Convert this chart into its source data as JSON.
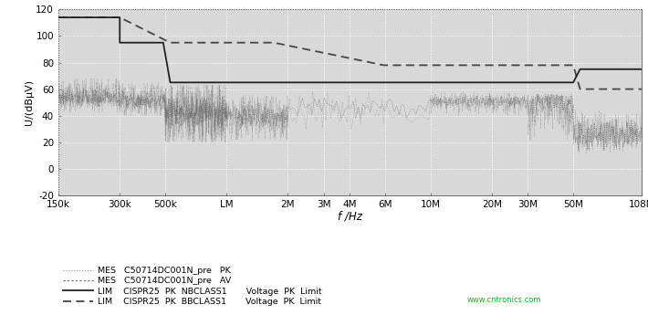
{
  "ylabel": "U/(dBμV)",
  "xlabel": "f /Hz",
  "ylim": [
    -20,
    120
  ],
  "yticks": [
    -20,
    0,
    20,
    40,
    60,
    80,
    100,
    120
  ],
  "freq_hz": [
    150000,
    300000,
    500000,
    1000000,
    2000000,
    3000000,
    4000000,
    6000000,
    10000000,
    20000000,
    30000000,
    50000000,
    108000000
  ],
  "freq_tick_labels": [
    "150k",
    "300k",
    "500k",
    "LM",
    "2M",
    "3M",
    "4M",
    "6M",
    "10M",
    "20M",
    "30M",
    "50M",
    "108M"
  ],
  "bg_color": "#d8d8d8",
  "grid_color": "#ffffff",
  "cispr25_nb_limit": {
    "freqs": [
      150000,
      300000,
      300001,
      490000,
      530000,
      530001,
      1705000,
      30000000,
      50000000,
      54000000,
      108000000
    ],
    "values": [
      114,
      114,
      95,
      95,
      65,
      65,
      65,
      65,
      65,
      75,
      75
    ]
  },
  "cispr25_bb_limit": {
    "freqs": [
      150000,
      300000,
      530000,
      1705000,
      5900000,
      6200000,
      30000000,
      50000000,
      54000000,
      108000000
    ],
    "values": [
      114,
      114,
      95,
      95,
      78,
      78,
      78,
      78,
      60,
      60
    ]
  },
  "legend_rows": [
    {
      "linestyle": "dotted",
      "color": "#999999",
      "lw": 0.8,
      "label1": "MES",
      "label2": "C50714DC001N_pre",
      "label3": "PK"
    },
    {
      "linestyle": "dashed",
      "color": "#777777",
      "lw": 0.8,
      "label1": "MES",
      "label2": "C50714DC001N_pre",
      "label3": "AV"
    },
    {
      "linestyle": "solid",
      "color": "#333333",
      "lw": 1.2,
      "label1": "LIM",
      "label2": "CISPR25 PK NBCLASS1",
      "label3": "Voltage  PK  Limit"
    },
    {
      "linestyle": "dashed",
      "color": "#333333",
      "lw": 1.2,
      "label1": "LIM",
      "label2": "CISPR25 PK BBCLASS1",
      "label3": "Voltage  PK  Limit"
    }
  ],
  "watermark": "www.cntronics.com",
  "watermark_color": "#00aa00"
}
